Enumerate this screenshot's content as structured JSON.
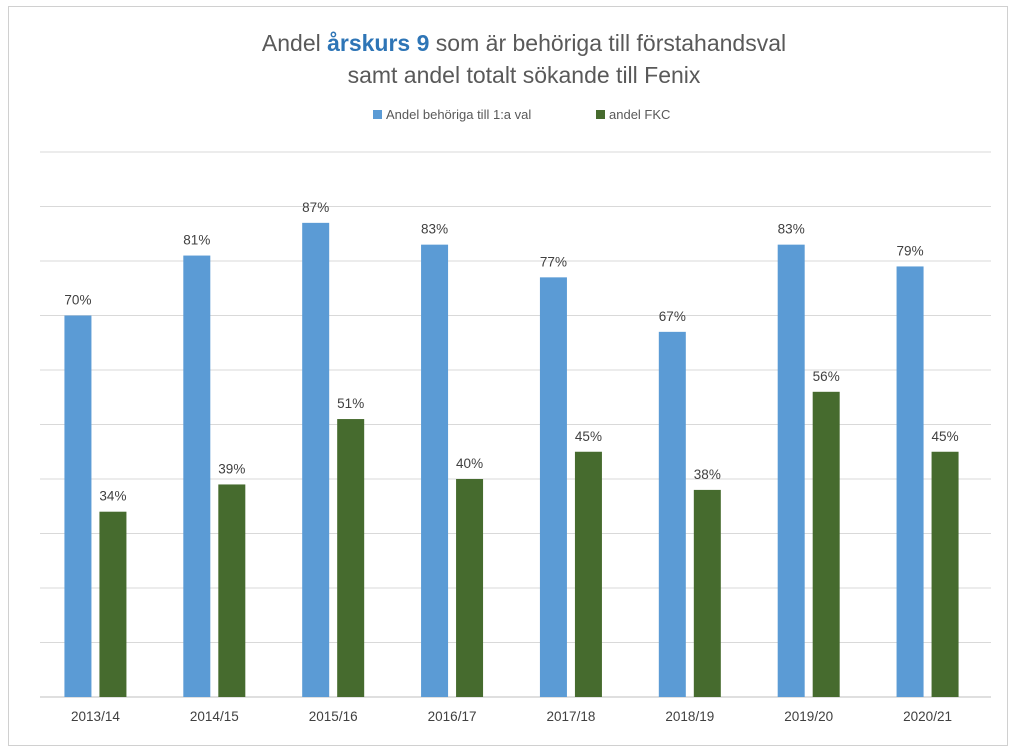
{
  "chart_data": {
    "type": "bar",
    "title": {
      "line1_prefix": "Andel ",
      "line1_bold": "årskurs 9",
      "line1_suffix": " som är behöriga till förstahandsval",
      "line2": "samt andel totalt sökande till Fenix"
    },
    "categories": [
      "2013/14",
      "2014/15",
      "2015/16",
      "2016/17",
      "2017/18",
      "2018/19",
      "2019/20",
      "2020/21"
    ],
    "series": [
      {
        "name": "Andel behöriga till 1:a val",
        "color": "#5b9bd5",
        "values": [
          70,
          81,
          87,
          83,
          77,
          67,
          83,
          79
        ],
        "labels": [
          "70%",
          "81%",
          "87%",
          "83%",
          "77%",
          "67%",
          "83%",
          "79%"
        ]
      },
      {
        "name": "andel FKC",
        "color": "#466b2e",
        "values": [
          34,
          39,
          51,
          40,
          45,
          38,
          56,
          45
        ],
        "labels": [
          "34%",
          "39%",
          "51%",
          "40%",
          "45%",
          "38%",
          "56%",
          "45%"
        ]
      }
    ],
    "ylim": [
      0,
      100
    ],
    "grid": true,
    "y_tick_labels_visible": false,
    "legend_position": "top"
  }
}
